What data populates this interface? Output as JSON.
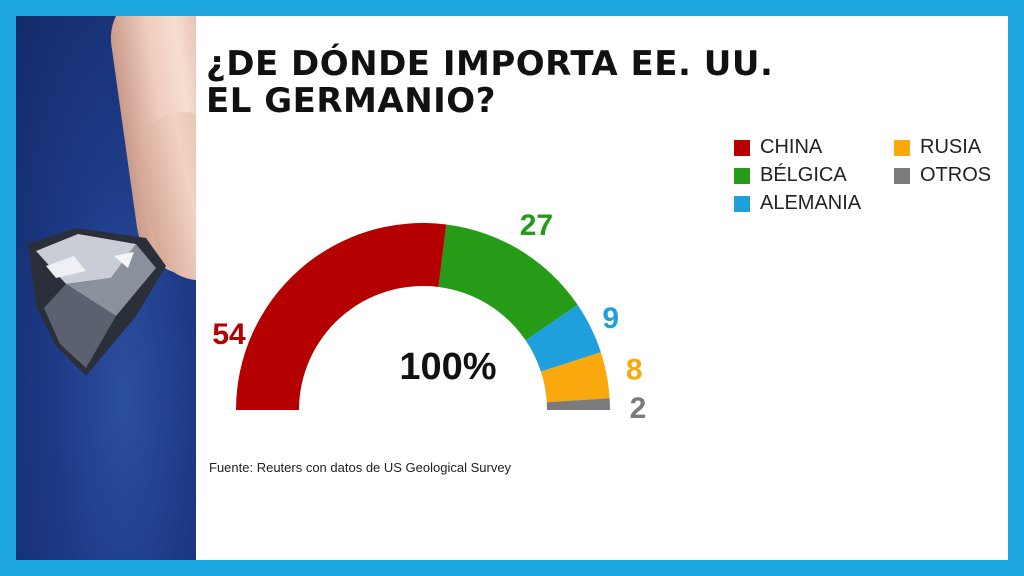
{
  "title_lines": [
    "¿DE DÓNDE IMPORTA EE. UU.",
    "EL GERMANIO?"
  ],
  "source": "Fuente: Reuters con datos de US Geological Survey",
  "chart_data": {
    "type": "pie",
    "subtype": "semicircle donut",
    "title": "¿DE DÓNDE IMPORTA EE. UU. EL GERMANIO?",
    "center_label": "100%",
    "legend_position": "top-right",
    "categories": [
      "CHINA",
      "BÉLGICA",
      "ALEMANIA",
      "RUSIA",
      "OTROS"
    ],
    "values": [
      54,
      27,
      9,
      8,
      2
    ],
    "value_labels": [
      "54",
      "27",
      "9",
      "8",
      "2"
    ],
    "colors": [
      "#b50000",
      "#259b17",
      "#1fa0dc",
      "#f9a90e",
      "#7b7b7b"
    ]
  }
}
